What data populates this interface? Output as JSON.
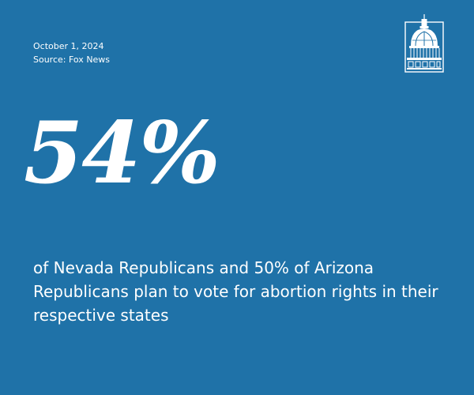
{
  "header": {
    "date": "October 1, 2024",
    "source": "Source: Fox News"
  },
  "logo": {
    "icon": "capitol-dome-icon"
  },
  "stat": {
    "value": "54%",
    "description": "of Nevada Republicans and 50% of Arizona Republicans plan to vote for abortion rights in their respective states"
  },
  "colors": {
    "background": "#1f72a8",
    "text": "#ffffff"
  }
}
